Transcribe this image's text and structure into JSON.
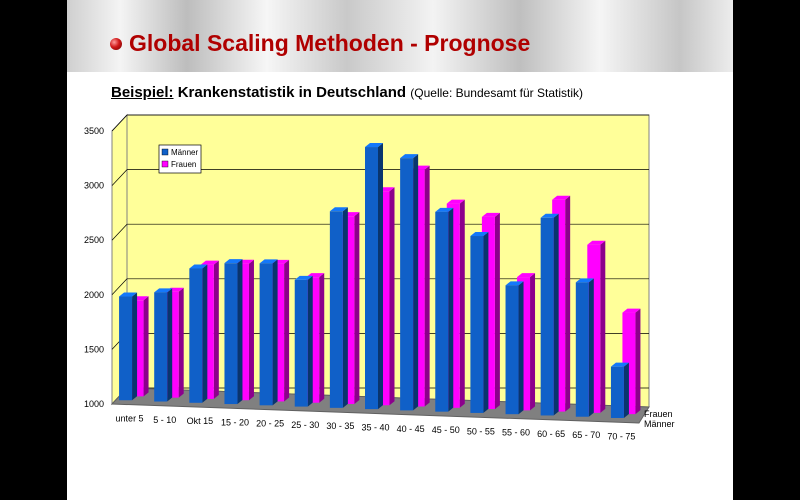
{
  "slide": {
    "title": "Global Scaling Methoden - Prognose",
    "subtitle_label": "Beispiel:",
    "subtitle_text": "Krankenstatistik in Deutschland",
    "source": "(Quelle: Bundesamt für Statistik)"
  },
  "colors": {
    "maenner": "#1060c8",
    "frauen": "#ff00ff",
    "wall": "#ffff99",
    "floor": "#808080",
    "title": "#b00000"
  },
  "chart_data": {
    "type": "bar",
    "categories": [
      "unter 5",
      "5 - 10",
      "Okt 15",
      "15 - 20",
      "20 - 25",
      "25 - 30",
      "30 - 35",
      "35 - 40",
      "40 - 45",
      "45 - 50",
      "50 - 55",
      "55 - 60",
      "60 - 65",
      "65 - 70",
      "70 - 75"
    ],
    "series": [
      {
        "name": "Männer",
        "values": [
          1950,
          2000,
          2230,
          2290,
          2300,
          2160,
          2800,
          3400,
          3310,
          2830,
          2620,
          2180,
          2810,
          2230,
          1470
        ]
      },
      {
        "name": "Frauen",
        "values": [
          1880,
          1970,
          2230,
          2250,
          2260,
          2150,
          2720,
          2960,
          3170,
          2870,
          2760,
          2220,
          2940,
          2540,
          1930
        ]
      }
    ],
    "yticks": [
      "1000",
      "1500",
      "2000",
      "2500",
      "3000",
      "3500"
    ],
    "ylim": [
      1000,
      3500
    ],
    "depth_labels": [
      "Frauen",
      "Männer"
    ],
    "legend_placement": "top-left",
    "grid": true
  }
}
